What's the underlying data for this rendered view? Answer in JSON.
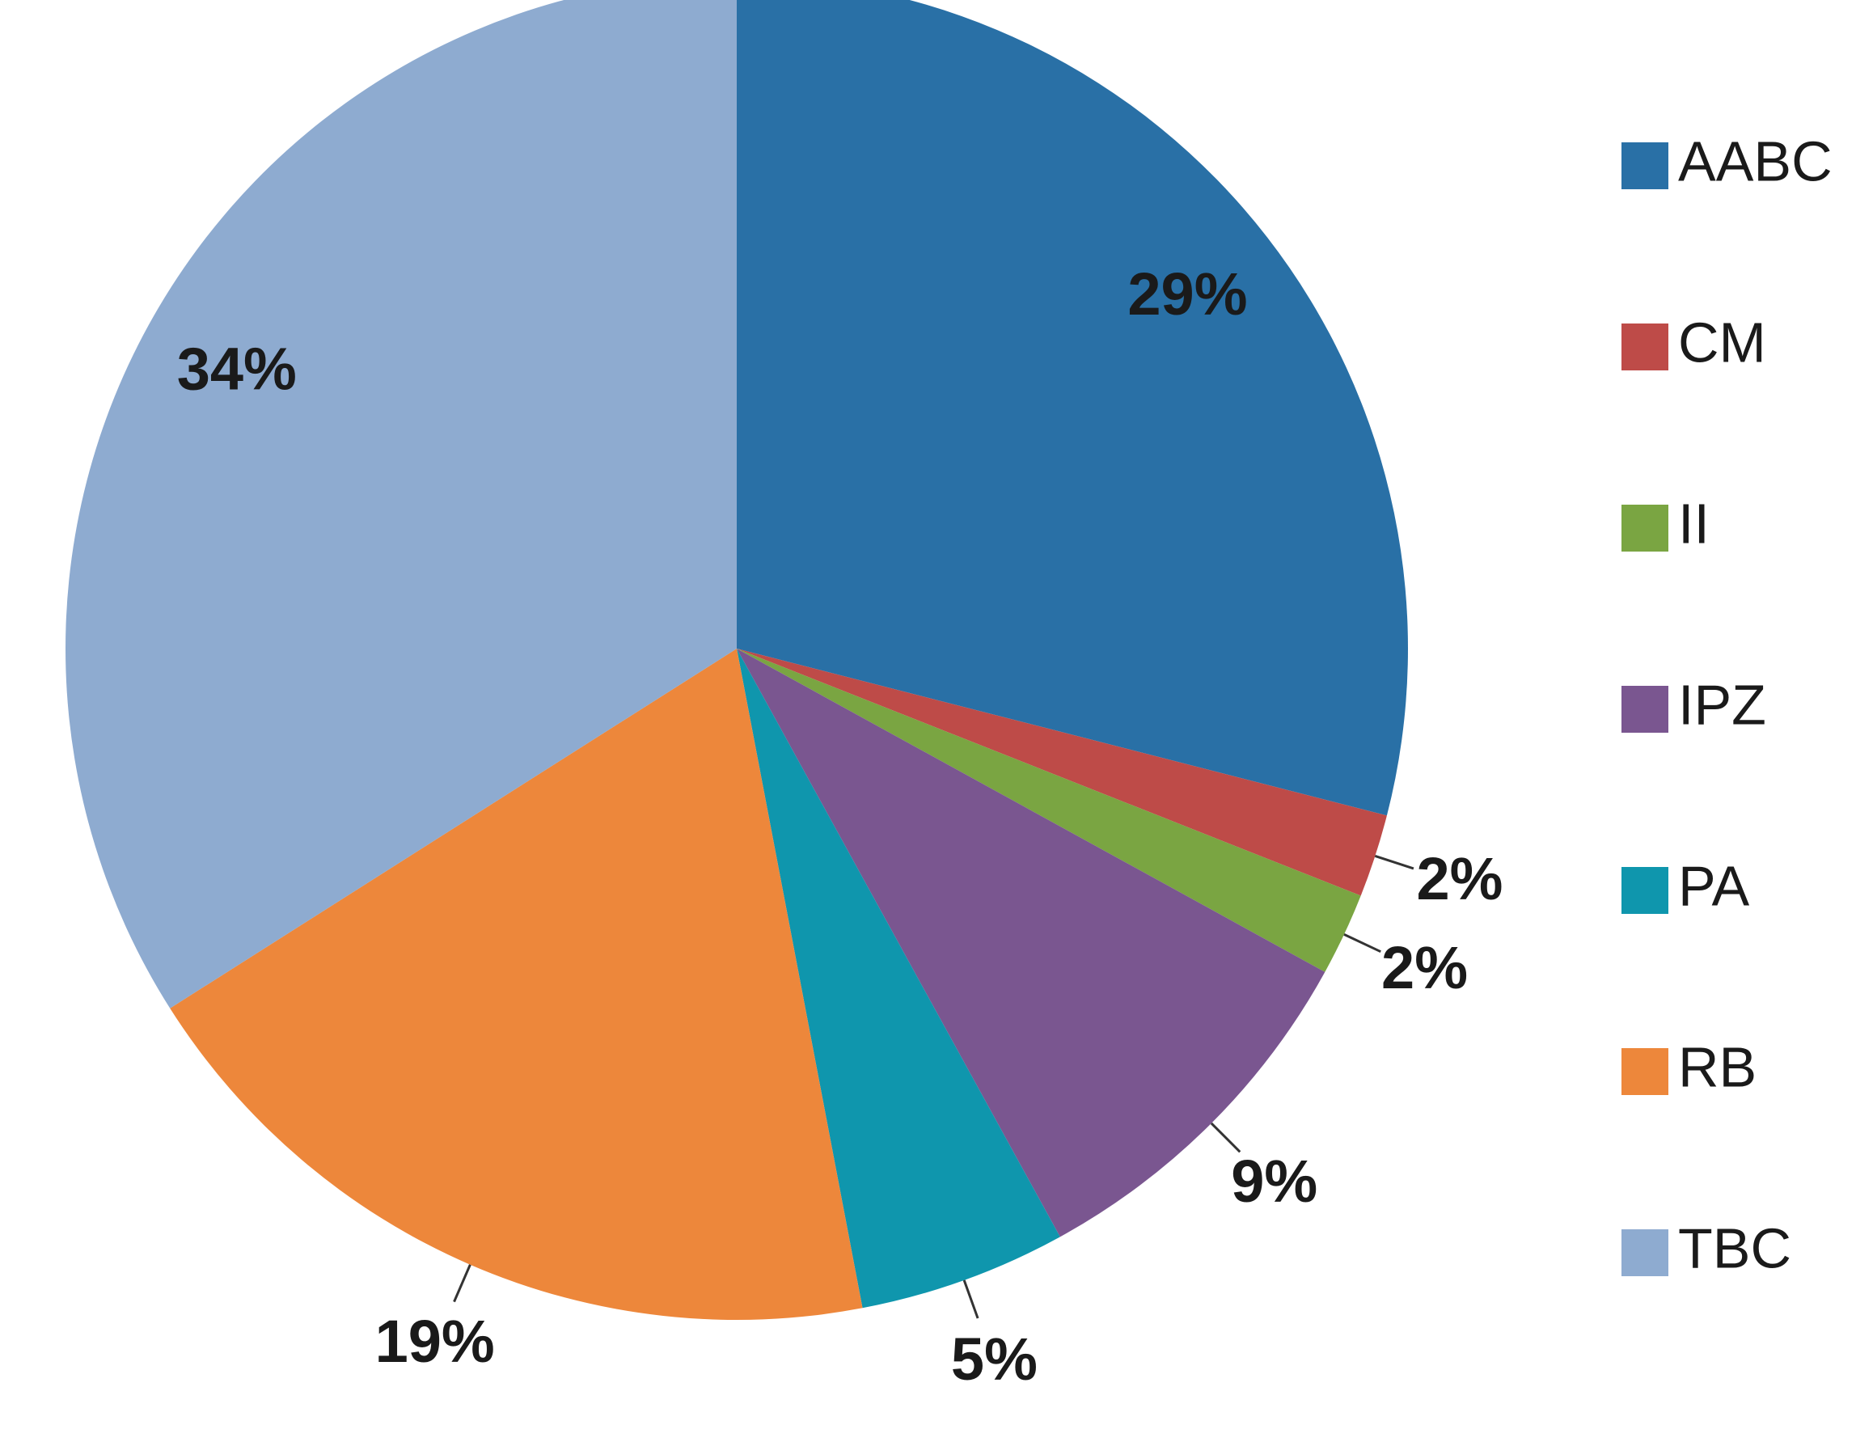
{
  "chart_data": {
    "type": "pie",
    "categories": [
      "AABC",
      "CM",
      "II",
      "IPZ",
      "PA",
      "RB",
      "TBC"
    ],
    "values": [
      29,
      2,
      2,
      9,
      5,
      19,
      34
    ],
    "value_labels": [
      "29%",
      "2%",
      "2%",
      "9%",
      "5%",
      "19%",
      "34%"
    ],
    "colors": [
      "#2970a6",
      "#be4b48",
      "#7aa542",
      "#7a5690",
      "#0f96ad",
      "#ed873b",
      "#8eabd0"
    ],
    "legend": "right"
  }
}
